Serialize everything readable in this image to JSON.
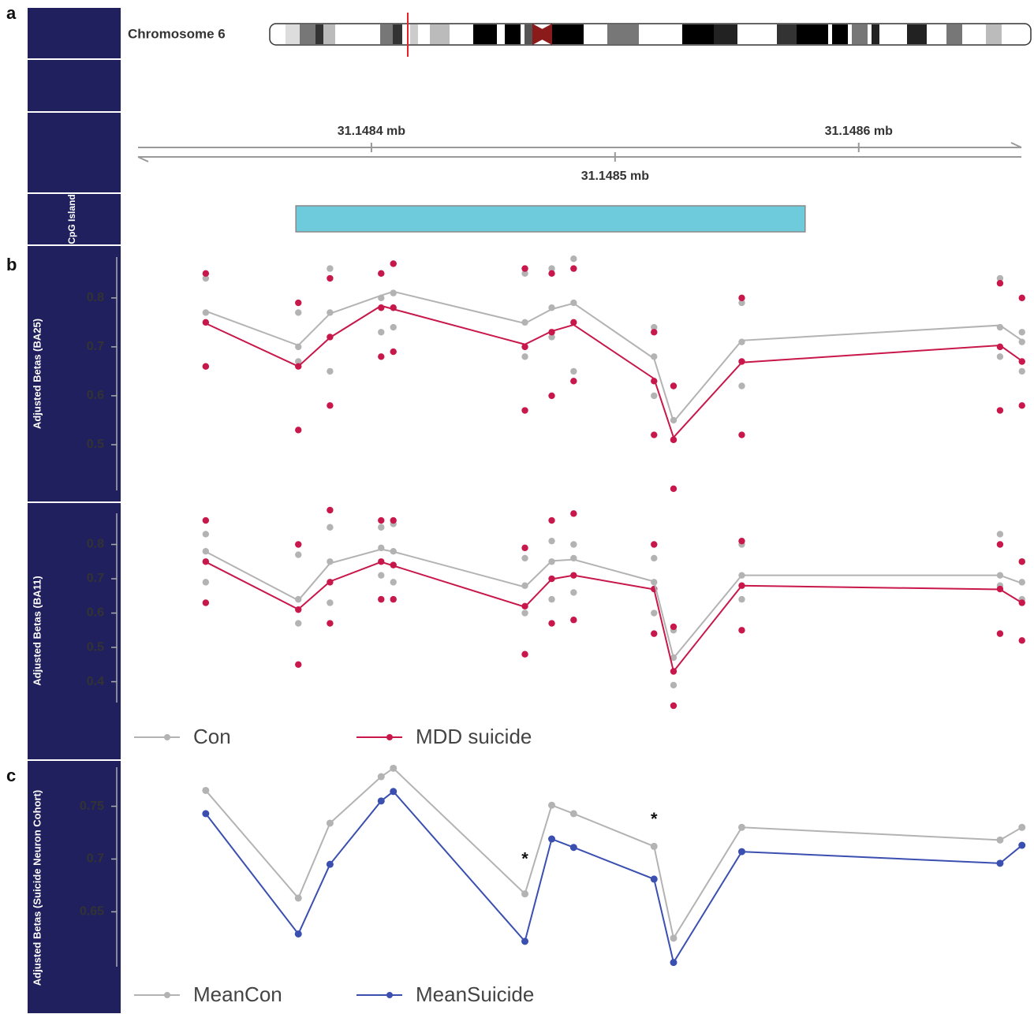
{
  "panel_labels": [
    "a",
    "b",
    "c"
  ],
  "ideogram": {
    "label": "Chromosome 6"
  },
  "genome_axis": {
    "xlim": [
      31.1483,
      31.14867
    ],
    "xticks": [
      {
        "value": 31.1484,
        "label": "31.1484 mb"
      },
      {
        "value": 31.1485,
        "label": "31.1485 mb"
      },
      {
        "value": 31.1486,
        "label": "31.1486 mb"
      }
    ]
  },
  "cpg_track": {
    "label": "CpG Island",
    "start": 31.148369,
    "end": 31.148578,
    "color": "#6ecbdc"
  },
  "chart_data": [
    {
      "type": "line",
      "ylabel": "Adjusted Betas (BA25)",
      "x": [
        31.148332,
        31.14837,
        31.148383,
        31.148404,
        31.148409,
        31.148463,
        31.148474,
        31.148483,
        31.148516,
        31.148524,
        31.148552,
        31.148658,
        31.148667
      ],
      "xlim": [
        31.1483,
        31.14867
      ],
      "ylim": [
        0.4,
        0.89
      ],
      "yticks": [
        0.5,
        0.6,
        0.7,
        0.8
      ],
      "series": [
        {
          "color": "#b3b3b3",
          "values": [
            0.773,
            0.703,
            0.768,
            0.805,
            0.813,
            0.748,
            0.777,
            0.789,
            0.676,
            0.547,
            0.713,
            0.744,
            0.713
          ],
          "points": [
            [
              0.84,
              0.77,
              0.66
            ],
            [
              0.77,
              0.7,
              0.67
            ],
            [
              0.86,
              0.77,
              0.65
            ],
            [
              0.85,
              0.8,
              0.73
            ],
            [
              0.87,
              0.81,
              0.74
            ],
            [
              0.85,
              0.75,
              0.68
            ],
            [
              0.86,
              0.78,
              0.72
            ],
            [
              0.88,
              0.79,
              0.65
            ],
            [
              0.74,
              0.68,
              0.6
            ],
            [
              0.62,
              0.55,
              0.51
            ],
            [
              0.79,
              0.71,
              0.62
            ],
            [
              0.84,
              0.74,
              0.68
            ],
            [
              0.73,
              0.71,
              0.65
            ]
          ]
        },
        {
          "color": "#c8174a",
          "values": [
            0.748,
            0.66,
            0.719,
            0.784,
            0.777,
            0.705,
            0.732,
            0.745,
            0.635,
            0.515,
            0.668,
            0.703,
            0.671
          ],
          "points": [
            [
              0.85,
              0.75,
              0.66
            ],
            [
              0.79,
              0.66,
              0.53
            ],
            [
              0.84,
              0.72,
              0.58
            ],
            [
              0.85,
              0.78,
              0.68
            ],
            [
              0.87,
              0.78,
              0.69
            ],
            [
              0.86,
              0.7,
              0.57
            ],
            [
              0.85,
              0.73,
              0.6
            ],
            [
              0.86,
              0.75,
              0.63
            ],
            [
              0.73,
              0.63,
              0.52
            ],
            [
              0.62,
              0.51,
              0.41
            ],
            [
              0.8,
              0.67,
              0.52
            ],
            [
              0.83,
              0.7,
              0.57
            ],
            [
              0.8,
              0.67,
              0.58
            ]
          ]
        }
      ]
    },
    {
      "type": "line",
      "ylabel": "Adjusted Betas (BA11)",
      "x": [
        31.148332,
        31.14837,
        31.148383,
        31.148404,
        31.148409,
        31.148463,
        31.148474,
        31.148483,
        31.148516,
        31.148524,
        31.148552,
        31.148658,
        31.148667
      ],
      "xlim": [
        31.1483,
        31.14867
      ],
      "ylim": [
        0.33,
        0.9
      ],
      "yticks": [
        0.4,
        0.5,
        0.6,
        0.7,
        0.8
      ],
      "series": [
        {
          "name": "Con",
          "color": "#b3b3b3",
          "values": [
            0.779,
            0.637,
            0.745,
            0.786,
            0.779,
            0.676,
            0.752,
            0.756,
            0.692,
            0.469,
            0.71,
            0.71,
            0.687
          ],
          "points": [
            [
              0.83,
              0.78,
              0.69
            ],
            [
              0.77,
              0.64,
              0.57
            ],
            [
              0.85,
              0.75,
              0.63
            ],
            [
              0.85,
              0.79,
              0.71
            ],
            [
              0.86,
              0.78,
              0.69
            ],
            [
              0.76,
              0.68,
              0.6
            ],
            [
              0.81,
              0.75,
              0.64
            ],
            [
              0.8,
              0.76,
              0.66
            ],
            [
              0.76,
              0.69,
              0.6
            ],
            [
              0.55,
              0.47,
              0.39
            ],
            [
              0.8,
              0.71,
              0.64
            ],
            [
              0.83,
              0.71,
              0.68
            ],
            [
              0.75,
              0.69,
              0.64
            ]
          ]
        },
        {
          "name": "MDD suicide",
          "color": "#c8174a",
          "values": [
            0.749,
            0.611,
            0.692,
            0.749,
            0.738,
            0.618,
            0.699,
            0.71,
            0.669,
            0.43,
            0.68,
            0.669,
            0.63
          ],
          "points": [
            [
              0.87,
              0.75,
              0.63
            ],
            [
              0.8,
              0.61,
              0.45
            ],
            [
              0.9,
              0.69,
              0.57
            ],
            [
              0.87,
              0.75,
              0.64
            ],
            [
              0.87,
              0.74,
              0.64
            ],
            [
              0.79,
              0.62,
              0.48
            ],
            [
              0.87,
              0.7,
              0.57
            ],
            [
              0.89,
              0.71,
              0.58
            ],
            [
              0.8,
              0.67,
              0.54
            ],
            [
              0.56,
              0.43,
              0.33
            ],
            [
              0.81,
              0.68,
              0.55
            ],
            [
              0.8,
              0.67,
              0.54
            ],
            [
              0.75,
              0.63,
              0.52
            ]
          ]
        }
      ]
    },
    {
      "type": "line",
      "ylabel": "Adjusted Betas (Suicide Neuron Cohort)",
      "x": [
        31.148332,
        31.14837,
        31.148383,
        31.148404,
        31.148409,
        31.148463,
        31.148474,
        31.148483,
        31.148516,
        31.148524,
        31.148552,
        31.148658,
        31.148667
      ],
      "xlim": [
        31.1483,
        31.14867
      ],
      "ylim": [
        0.595,
        0.79
      ],
      "yticks": [
        0.65,
        0.7,
        0.75
      ],
      "series": [
        {
          "name": "MeanCon",
          "color": "#b3b3b3",
          "values": [
            0.765,
            0.663,
            0.734,
            0.778,
            0.786,
            0.667,
            0.751,
            0.743,
            0.712,
            0.625,
            0.73,
            0.718,
            0.73
          ]
        },
        {
          "name": "MeanSuicide",
          "color": "#3a4fb0",
          "values": [
            0.743,
            0.629,
            0.695,
            0.755,
            0.764,
            0.622,
            0.719,
            0.711,
            0.681,
            0.602,
            0.707,
            0.696,
            0.713
          ]
        }
      ],
      "annotations": [
        {
          "text": "*",
          "x": 31.148463,
          "y": 0.699
        },
        {
          "text": "*",
          "x": 31.148516,
          "y": 0.737
        }
      ]
    }
  ]
}
